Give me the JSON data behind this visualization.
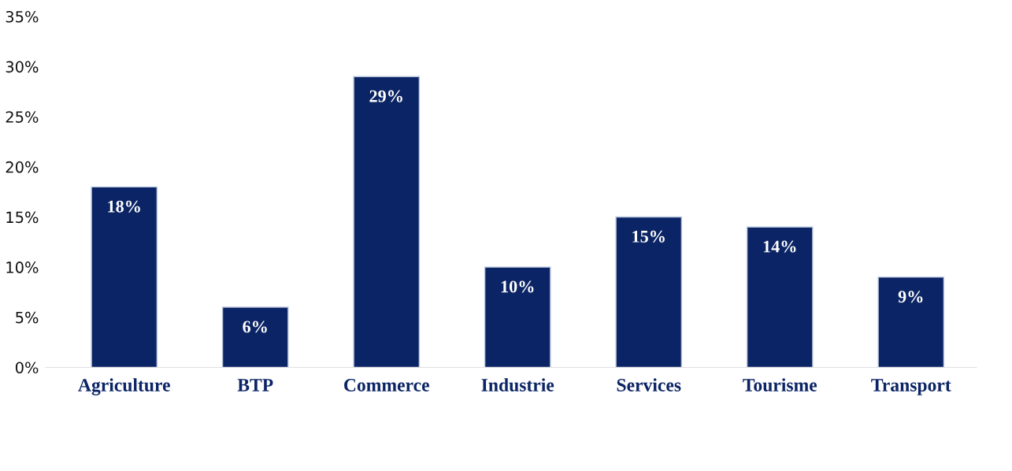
{
  "chart_data": {
    "type": "bar",
    "categories": [
      "Agriculture",
      "BTP",
      "Commerce",
      "Industrie",
      "Services",
      "Tourisme",
      "Transport"
    ],
    "values": [
      18,
      6,
      29,
      10,
      15,
      14,
      9
    ],
    "value_labels": [
      "18%",
      "6%",
      "29%",
      "10%",
      "15%",
      "14%",
      "9%"
    ],
    "color": "#0b2465",
    "ylim": [
      0,
      35
    ],
    "yticks": [
      {
        "value": 0,
        "label": "0%"
      },
      {
        "value": 5,
        "label": "5%"
      },
      {
        "value": 10,
        "label": "10%"
      },
      {
        "value": 15,
        "label": "15%"
      },
      {
        "value": 20,
        "label": "20%"
      },
      {
        "value": 25,
        "label": "25%"
      },
      {
        "value": 30,
        "label": "30%"
      },
      {
        "value": 35,
        "label": "35%"
      }
    ],
    "grid": false,
    "legend": false
  }
}
